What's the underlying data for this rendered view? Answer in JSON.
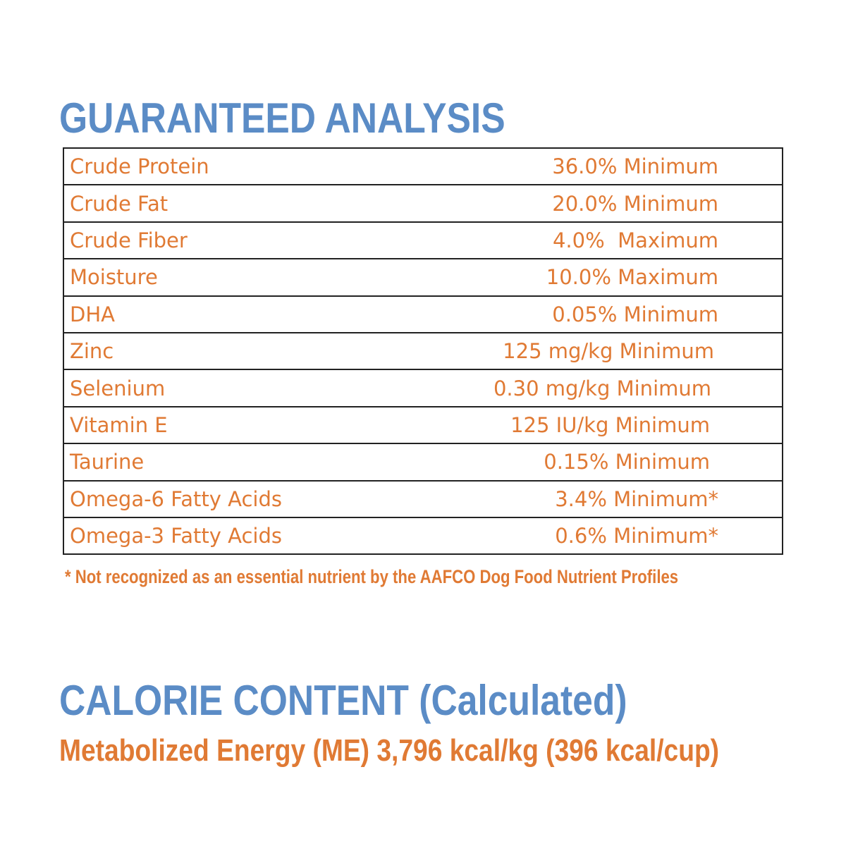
{
  "guaranteed_analysis": {
    "title": "GUARANTEED ANALYSIS",
    "rows": [
      {
        "nutrient": "Crude Protein",
        "amount": "36.0% Minimum"
      },
      {
        "nutrient": "Crude Fat",
        "amount": "20.0% Minimum"
      },
      {
        "nutrient": "Crude Fiber",
        "amount": "4.0%  Maximum"
      },
      {
        "nutrient": "Moisture",
        "amount": "10.0% Maximum"
      },
      {
        "nutrient": "DHA",
        "amount": "0.05% Minimum"
      },
      {
        "nutrient": "Zinc",
        "amount": "125 mg/kg Minimum"
      },
      {
        "nutrient": "Selenium",
        "amount": "0.30 mg/kg Minimum"
      },
      {
        "nutrient": "Vitamin E",
        "amount": "125 IU/kg Minimum"
      },
      {
        "nutrient": "Taurine",
        "amount": "0.15% Minimum"
      },
      {
        "nutrient": "Omega-6 Fatty Acids",
        "amount": "3.4% Minimum*"
      },
      {
        "nutrient": "Omega-3 Fatty Acids",
        "amount": "0.6% Minimum*"
      }
    ],
    "footnote": "* Not recognized as an essential nutrient by the AAFCO Dog Food Nutrient Profiles"
  },
  "calorie_content": {
    "title": "CALORIE CONTENT",
    "title_suffix": "(Calculated)",
    "energy": "Metabolized Energy (ME) 3,796 kcal/kg (396 kcal/cup)"
  },
  "colors": {
    "heading_blue": "#5b8cc6",
    "text_orange": "#e07a34",
    "border": "#222222"
  }
}
